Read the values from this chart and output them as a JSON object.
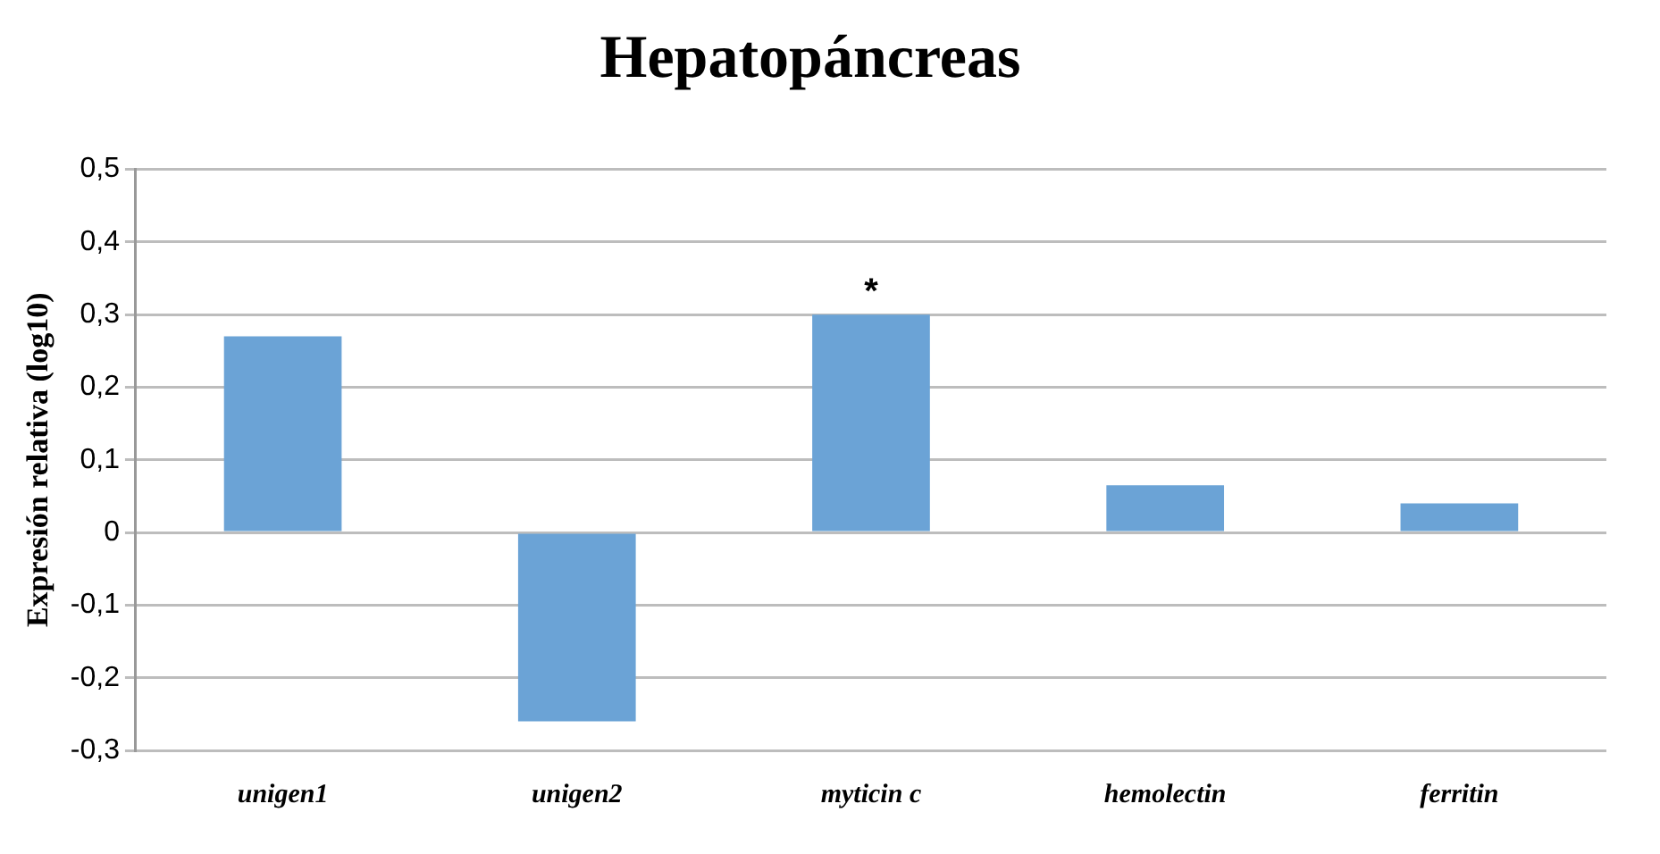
{
  "chart_data": {
    "type": "bar",
    "title": "Hepatopáncreas",
    "ylabel": "Expresión relativa (log10)",
    "categories": [
      "unigen1",
      "unigen2",
      "myticin c",
      "hemolectin",
      "ferritin"
    ],
    "values": [
      0.27,
      -0.26,
      0.3,
      0.065,
      0.04
    ],
    "color": "#6ba3d6",
    "ylim": [
      -0.3,
      0.5
    ],
    "yticks": [
      {
        "value": -0.3,
        "label": "-0,3"
      },
      {
        "value": -0.2,
        "label": "-0,2"
      },
      {
        "value": -0.1,
        "label": "-0,1"
      },
      {
        "value": 0,
        "label": "0"
      },
      {
        "value": 0.1,
        "label": "0,1"
      },
      {
        "value": 0.2,
        "label": "0,2"
      },
      {
        "value": 0.3,
        "label": "0,3"
      },
      {
        "value": 0.4,
        "label": "0,4"
      },
      {
        "value": 0.5,
        "label": "0,5"
      }
    ],
    "grid": "y",
    "legend": false,
    "annotations": [
      {
        "text": "*",
        "x": "myticin c",
        "y": 0.3
      }
    ]
  }
}
